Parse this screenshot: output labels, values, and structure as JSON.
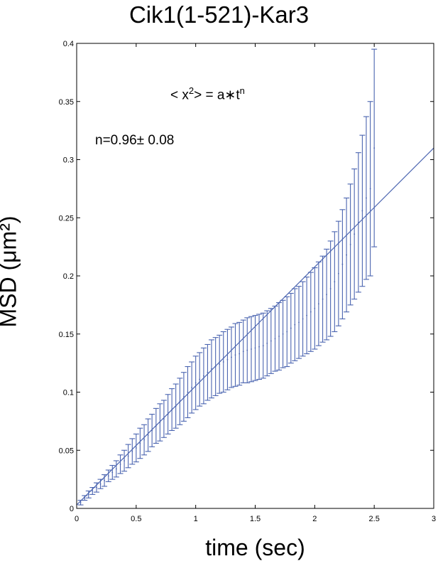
{
  "chart_data": {
    "type": "line",
    "title": "Cik1(1-521)-Kar3",
    "xlabel": "time (sec)",
    "ylabel": "MSD (μm²)",
    "xlim": [
      0,
      3
    ],
    "ylim": [
      0,
      0.4
    ],
    "xticks": [
      "0",
      "0.5",
      "1",
      "1.5",
      "2",
      "2.5",
      "3"
    ],
    "yticks": [
      "0",
      "0.05",
      "0.1",
      "0.15",
      "0.2",
      "0.25",
      "0.3",
      "0.35",
      "0.4"
    ],
    "annotations": {
      "formula_lhs": "< x",
      "formula_sup": "2",
      "formula_mid": "> = a∗t",
      "formula_exp": "n",
      "n_value": "n=0.96± 0.08"
    },
    "grid": false,
    "color": "#4a64b0",
    "series": [
      {
        "kind": "errorbar",
        "x": [
          0.033,
          0.067,
          0.1,
          0.133,
          0.167,
          0.2,
          0.233,
          0.267,
          0.3,
          0.333,
          0.367,
          0.4,
          0.433,
          0.467,
          0.5,
          0.533,
          0.567,
          0.6,
          0.633,
          0.667,
          0.7,
          0.733,
          0.767,
          0.8,
          0.833,
          0.867,
          0.9,
          0.933,
          0.967,
          1.0,
          1.033,
          1.067,
          1.1,
          1.133,
          1.167,
          1.2,
          1.233,
          1.267,
          1.3,
          1.333,
          1.367,
          1.4,
          1.433,
          1.467,
          1.5,
          1.533,
          1.567,
          1.6,
          1.633,
          1.667,
          1.7,
          1.733,
          1.767,
          1.8,
          1.833,
          1.867,
          1.9,
          1.933,
          1.967,
          2.0,
          2.033,
          2.067,
          2.1,
          2.133,
          2.167,
          2.2,
          2.233,
          2.267,
          2.3,
          2.333,
          2.367,
          2.4,
          2.433,
          2.467,
          2.5
        ],
        "y": [
          0.005,
          0.009,
          0.012,
          0.015,
          0.018,
          0.021,
          0.024,
          0.028,
          0.031,
          0.034,
          0.038,
          0.041,
          0.045,
          0.049,
          0.052,
          0.056,
          0.059,
          0.063,
          0.067,
          0.071,
          0.074,
          0.077,
          0.081,
          0.085,
          0.088,
          0.092,
          0.096,
          0.1,
          0.104,
          0.108,
          0.111,
          0.114,
          0.117,
          0.12,
          0.122,
          0.124,
          0.126,
          0.128,
          0.13,
          0.132,
          0.133,
          0.135,
          0.136,
          0.137,
          0.138,
          0.139,
          0.14,
          0.142,
          0.144,
          0.146,
          0.148,
          0.15,
          0.152,
          0.155,
          0.158,
          0.16,
          0.163,
          0.166,
          0.169,
          0.172,
          0.176,
          0.18,
          0.184,
          0.189,
          0.195,
          0.202,
          0.21,
          0.218,
          0.227,
          0.236,
          0.246,
          0.256,
          0.267,
          0.275,
          0.31
        ],
        "err": [
          0.002,
          0.002,
          0.003,
          0.003,
          0.004,
          0.004,
          0.005,
          0.005,
          0.006,
          0.007,
          0.008,
          0.009,
          0.01,
          0.011,
          0.012,
          0.013,
          0.013,
          0.014,
          0.014,
          0.015,
          0.016,
          0.016,
          0.017,
          0.018,
          0.019,
          0.02,
          0.021,
          0.022,
          0.022,
          0.023,
          0.023,
          0.024,
          0.024,
          0.025,
          0.025,
          0.025,
          0.026,
          0.026,
          0.026,
          0.027,
          0.027,
          0.027,
          0.028,
          0.028,
          0.028,
          0.028,
          0.028,
          0.028,
          0.028,
          0.028,
          0.029,
          0.029,
          0.03,
          0.03,
          0.031,
          0.031,
          0.032,
          0.033,
          0.034,
          0.035,
          0.036,
          0.037,
          0.039,
          0.041,
          0.043,
          0.045,
          0.047,
          0.049,
          0.052,
          0.056,
          0.06,
          0.065,
          0.07,
          0.075,
          0.085
        ]
      },
      {
        "kind": "fit",
        "x": [
          0,
          3
        ],
        "y": [
          0.003,
          0.31
        ]
      }
    ]
  }
}
